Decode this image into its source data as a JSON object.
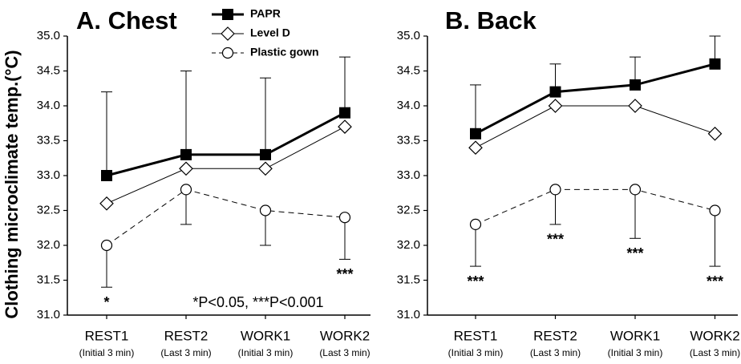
{
  "chart_data": [
    {
      "type": "line",
      "title": "A. Chest",
      "ylabel": "Clothing microclimate temp.(°C)",
      "categories": [
        "REST1",
        "REST2",
        "WORK1",
        "WORK2"
      ],
      "category_notes": [
        "(Initial 3 min)",
        "(Last 3 min)",
        "(Initial 3 min)",
        "(Last 3 min)"
      ],
      "ylim": [
        31.0,
        35.0
      ],
      "yticks": [
        {
          "value": 31,
          "label": "31.0"
        },
        31.5,
        {
          "value": 32,
          "label": "32.0"
        },
        32.5,
        {
          "value": 33,
          "label": "33.0"
        },
        33.5,
        {
          "value": 34,
          "label": "34.0"
        },
        34.5,
        {
          "value": 35,
          "label": "35.0"
        }
      ],
      "legend": "top",
      "series": [
        {
          "name": "PAPR",
          "color": "#000000",
          "marker": "square",
          "values": [
            33.0,
            33.3,
            33.3,
            33.9
          ],
          "errors": [
            1.2,
            1.2,
            1.1,
            0.8
          ],
          "error_direction": "up"
        },
        {
          "name": "Level D",
          "color": "#000000",
          "marker": "diamond",
          "values": [
            32.6,
            33.1,
            33.1,
            33.7
          ]
        },
        {
          "name": "Plastic gown",
          "color": "#000000",
          "marker": "circle",
          "dashed": true,
          "values": [
            32.0,
            32.8,
            32.5,
            32.4
          ],
          "errors": [
            0.6,
            0.5,
            0.5,
            0.6
          ],
          "error_direction": "down"
        }
      ],
      "significance": [
        "*",
        null,
        null,
        "***"
      ],
      "note": "*P<0.05, ***P<0.001"
    },
    {
      "type": "line",
      "title": "B. Back",
      "categories": [
        "REST1",
        "REST2",
        "WORK1",
        "WORK2"
      ],
      "category_notes": [
        "(Initial 3 min)",
        "(Last 3 min)",
        "(Initial 3 min)",
        "(Last 3 min)"
      ],
      "ylim": [
        31.0,
        35.0
      ],
      "yticks": [
        {
          "value": 31,
          "label": "31.0"
        },
        31.5,
        {
          "value": 32,
          "label": "32.0"
        },
        32.5,
        {
          "value": 33,
          "label": "33.0"
        },
        33.5,
        {
          "value": 34,
          "label": "34.0"
        },
        34.5,
        {
          "value": 35,
          "label": "35.0"
        }
      ],
      "series": [
        {
          "color": "#000000",
          "marker": "square",
          "values": [
            33.6,
            34.2,
            34.3,
            34.6
          ],
          "errors": [
            0.7,
            0.4,
            0.4,
            0.4
          ],
          "error_direction": "up"
        },
        {
          "color": "#000000",
          "marker": "diamond",
          "values": [
            33.4,
            34.0,
            34.0,
            33.6
          ]
        },
        {
          "color": "#000000",
          "marker": "circle",
          "dashed": true,
          "values": [
            32.3,
            32.8,
            32.8,
            32.5
          ],
          "errors": [
            0.6,
            0.5,
            0.7,
            0.8
          ],
          "error_direction": "down"
        }
      ],
      "significance": [
        "***",
        "***",
        "***",
        "***"
      ]
    }
  ]
}
